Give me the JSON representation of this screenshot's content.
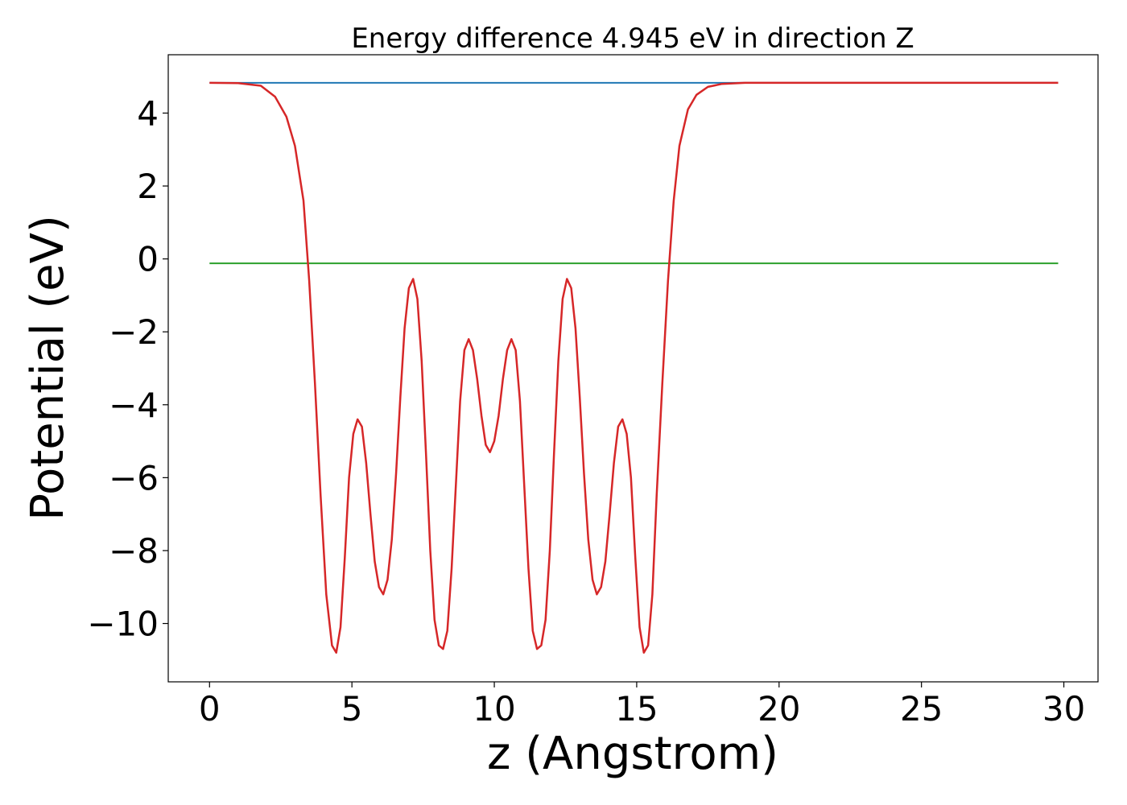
{
  "chart_data": {
    "type": "line",
    "title": "Energy difference 4.945 eV in direction Z",
    "xlabel": "z (Angstrom)",
    "ylabel": "Potential (eV)",
    "xlim": [
      -1.45,
      31.2
    ],
    "ylim": [
      -11.6,
      5.6
    ],
    "xticks": [
      0,
      5,
      10,
      15,
      20,
      25,
      30
    ],
    "yticks": [
      4,
      2,
      0,
      -2,
      -4,
      -6,
      -8,
      -10
    ],
    "ytick_labels": [
      "4",
      "2",
      "0",
      "−2",
      "−4",
      "−6",
      "−8",
      "−10"
    ],
    "grid": false,
    "legend": "none",
    "series": [
      {
        "color": "#1f77b4",
        "x": [
          0,
          29.8
        ],
        "y": [
          4.83,
          4.83
        ]
      },
      {
        "color": "#2ca02c",
        "x": [
          0,
          29.8
        ],
        "y": [
          -0.12,
          -0.12
        ]
      },
      {
        "color": "#9467bd",
        "x": [
          18.5,
          29.8
        ],
        "y": [
          4.83,
          4.83
        ]
      },
      {
        "color": "#d62728",
        "x": [
          0,
          1.0,
          1.8,
          2.3,
          2.7,
          3.0,
          3.3,
          3.5,
          3.7,
          3.9,
          4.1,
          4.3,
          4.45,
          4.6,
          4.75,
          4.9,
          5.05,
          5.2,
          5.35,
          5.5,
          5.65,
          5.8,
          5.95,
          6.1,
          6.25,
          6.4,
          6.55,
          6.7,
          6.85,
          7.0,
          7.15,
          7.3,
          7.45,
          7.6,
          7.75,
          7.9,
          8.05,
          8.2,
          8.35,
          8.5,
          8.65,
          8.8,
          8.95,
          9.1,
          9.25,
          9.4,
          9.55,
          9.7,
          9.85,
          10.0,
          10.15,
          10.3,
          10.45,
          10.6,
          10.75,
          10.9,
          11.05,
          11.2,
          11.35,
          11.5,
          11.65,
          11.8,
          11.95,
          12.1,
          12.25,
          12.4,
          12.55,
          12.7,
          12.85,
          13.0,
          13.15,
          13.3,
          13.45,
          13.6,
          13.75,
          13.9,
          14.05,
          14.2,
          14.35,
          14.5,
          14.65,
          14.8,
          14.95,
          15.1,
          15.25,
          15.4,
          15.55,
          15.7,
          15.9,
          16.1,
          16.3,
          16.5,
          16.8,
          17.1,
          17.5,
          18.0,
          18.8,
          20.0,
          29.8
        ],
        "y": [
          4.83,
          4.82,
          4.75,
          4.45,
          3.9,
          3.1,
          1.6,
          -0.6,
          -3.4,
          -6.5,
          -9.2,
          -10.6,
          -10.8,
          -10.1,
          -8.2,
          -6.0,
          -4.8,
          -4.4,
          -4.6,
          -5.6,
          -7.0,
          -8.3,
          -9.0,
          -9.2,
          -8.8,
          -7.7,
          -5.9,
          -3.8,
          -1.9,
          -0.8,
          -0.55,
          -1.1,
          -2.8,
          -5.3,
          -8.0,
          -9.9,
          -10.6,
          -10.7,
          -10.2,
          -8.5,
          -6.2,
          -3.9,
          -2.5,
          -2.2,
          -2.5,
          -3.3,
          -4.3,
          -5.1,
          -5.3,
          -5.0,
          -4.3,
          -3.3,
          -2.5,
          -2.2,
          -2.5,
          -3.9,
          -6.2,
          -8.5,
          -10.2,
          -10.7,
          -10.6,
          -9.9,
          -8.0,
          -5.3,
          -2.8,
          -1.1,
          -0.55,
          -0.8,
          -1.9,
          -3.8,
          -5.9,
          -7.7,
          -8.8,
          -9.2,
          -9.0,
          -8.3,
          -7.0,
          -5.6,
          -4.6,
          -4.4,
          -4.8,
          -6.0,
          -8.2,
          -10.1,
          -10.8,
          -10.6,
          -9.2,
          -6.5,
          -3.4,
          -0.6,
          1.6,
          3.1,
          4.1,
          4.5,
          4.72,
          4.8,
          4.83,
          4.83,
          4.83
        ]
      }
    ]
  }
}
